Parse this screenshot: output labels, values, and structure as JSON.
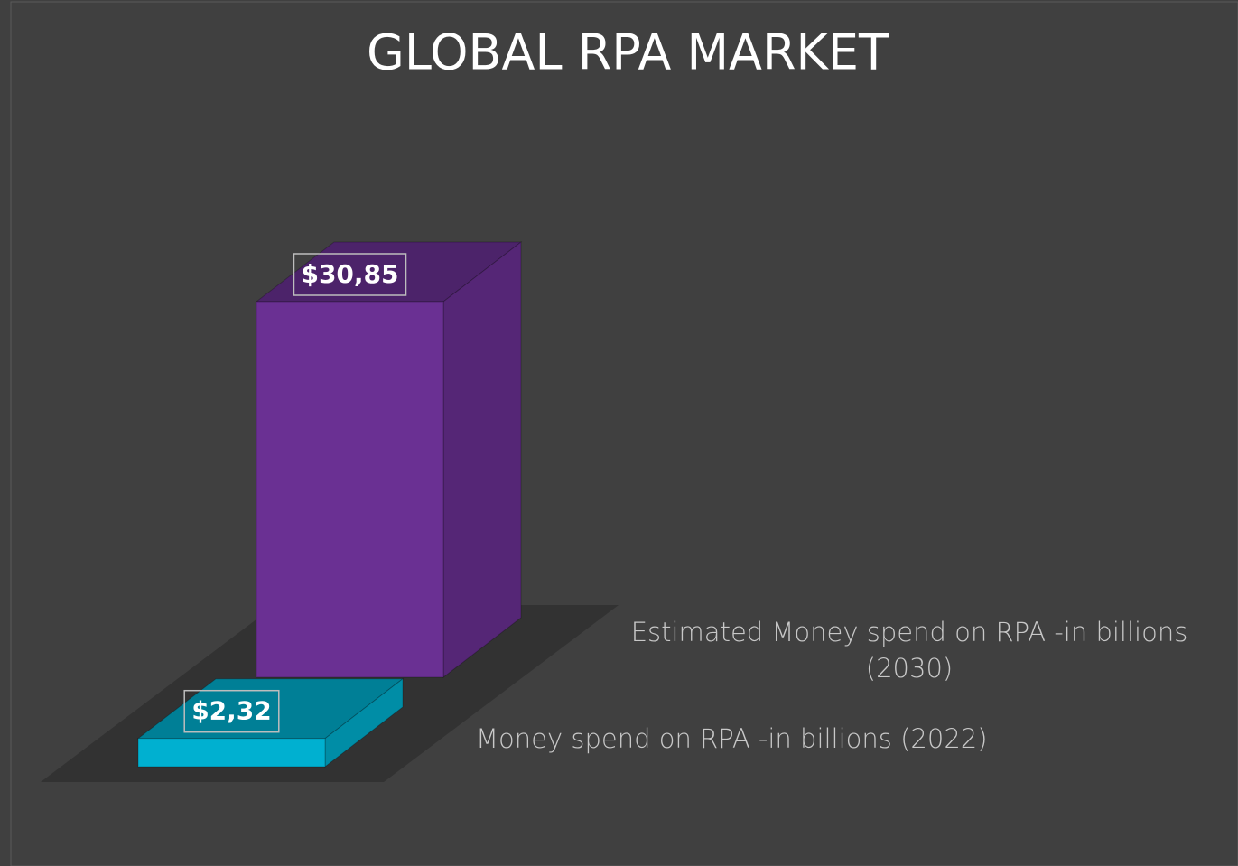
{
  "chart_data": {
    "type": "bar3d",
    "title": "GLOBAL RPA MARKET",
    "categories": [
      null
    ],
    "series": [
      {
        "name": "Money spend on RPA -in billions (2022)",
        "color": "#00b0d0",
        "values": [
          2.32
        ],
        "value_labels": [
          "$2,32"
        ]
      },
      {
        "name": "Estimated Money spend on RPA -in billions (2030)",
        "color": "#6a3093",
        "values": [
          30.85
        ],
        "value_labels": [
          "$30,85"
        ]
      }
    ]
  }
}
